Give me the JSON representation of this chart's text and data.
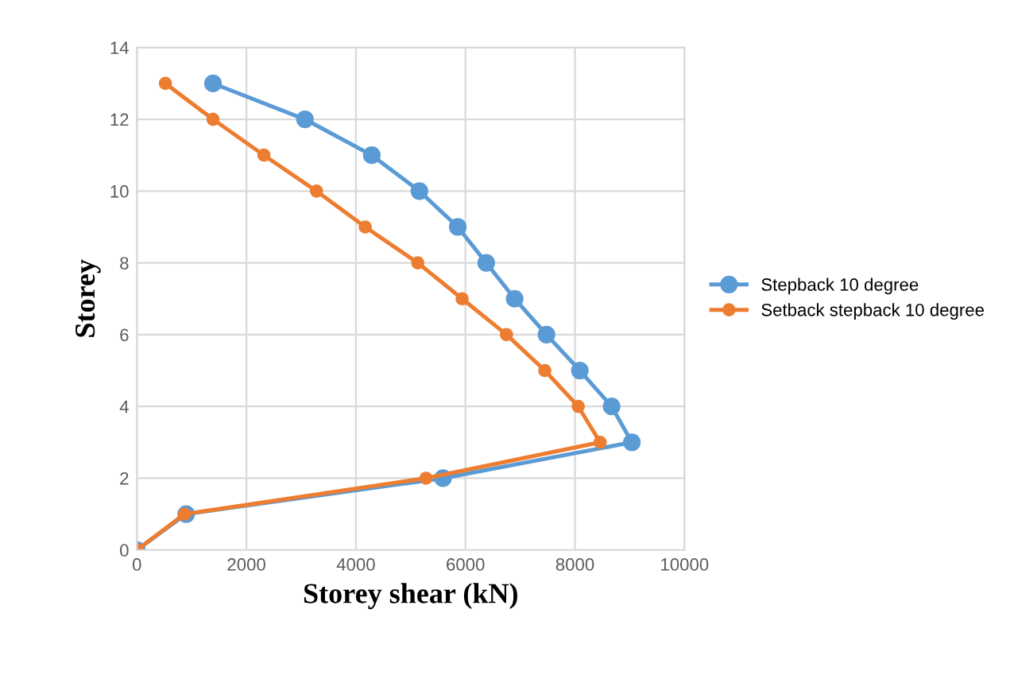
{
  "chart_data": {
    "type": "line",
    "xlabel": "Storey shear (kN)",
    "ylabel": "Storey",
    "xlim": [
      0,
      10000
    ],
    "xticks": [
      0,
      2000,
      4000,
      6000,
      8000,
      10000
    ],
    "ylim": [
      0,
      14
    ],
    "yticks": [
      0,
      2,
      4,
      6,
      8,
      10,
      12,
      14
    ],
    "grid": true,
    "legend": "right",
    "marker": "circle",
    "series": [
      {
        "name": "Stepback 10 degree",
        "color": "#5b9bd5",
        "x": [
          0,
          900,
          5590,
          9040,
          8670,
          8090,
          7480,
          6900,
          6380,
          5860,
          5160,
          4290,
          3070,
          1390
        ],
        "values": [
          0,
          1,
          2,
          3,
          4,
          5,
          6,
          7,
          8,
          9,
          10,
          11,
          12,
          13
        ]
      },
      {
        "name": "Setback stepback 10 degree",
        "color": "#ed7d31",
        "x": [
          0,
          870,
          5280,
          8460,
          8060,
          7450,
          6750,
          5940,
          5130,
          4170,
          3280,
          2320,
          1390,
          520
        ],
        "values": [
          0,
          1,
          2,
          3,
          4,
          5,
          6,
          7,
          8,
          9,
          10,
          11,
          12,
          13
        ]
      }
    ]
  }
}
